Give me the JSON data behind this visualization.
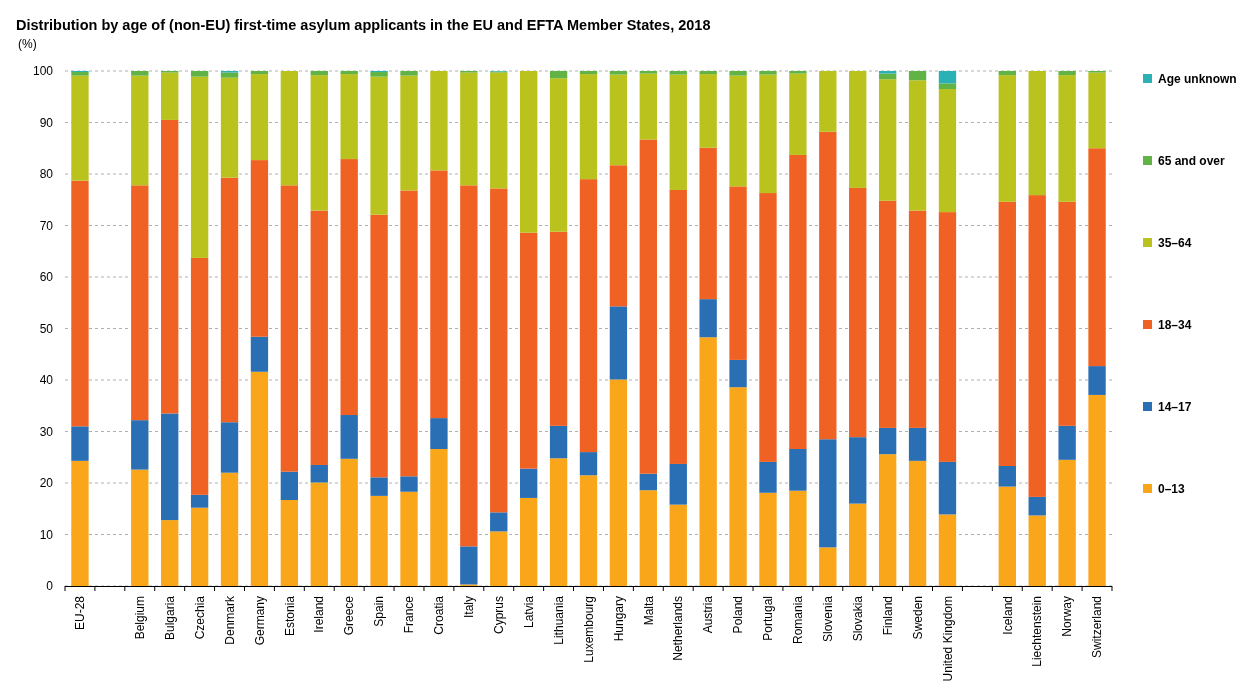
{
  "chart_data": {
    "type": "bar",
    "stacked": true,
    "title": "Distribution by age of (non-EU) first-time  asylum applicants in the EU and EFTA Member States, 2018",
    "ylabel": "(%)",
    "categories": [
      "EU-28",
      null,
      "Belgium",
      "Bulgaria",
      "Czechia",
      "Denmark",
      "Germany",
      "Estonia",
      "Ireland",
      "Greece",
      "Spain",
      "France",
      "Croatia",
      "Italy",
      "Cyprus",
      "Latvia",
      "Lithuania",
      "Luxembourg",
      "Hungary",
      "Malta",
      "Netherlands",
      "Austria",
      "Poland",
      "Portugal",
      "Romania",
      "Slovenia",
      "Slovakia",
      "Finland",
      "Sweden",
      "United Kingdom",
      null,
      "Iceland",
      "Liechtenstein",
      "Norway",
      "Switzerland"
    ],
    "series": [
      {
        "name": "0–13",
        "color": "#f9a61a",
        "values": [
          24.3,
          null,
          22.6,
          12.8,
          15.2,
          22.0,
          41.6,
          16.7,
          20.1,
          24.7,
          17.5,
          18.3,
          26.6,
          0.3,
          10.6,
          17.1,
          24.8,
          21.5,
          40.1,
          18.6,
          15.8,
          48.3,
          38.6,
          18.1,
          18.5,
          7.5,
          16.0,
          25.6,
          24.3,
          13.9,
          null,
          19.3,
          13.7,
          24.5,
          37.1
        ]
      },
      {
        "name": "14–17",
        "color": "#2a6eb4",
        "values": [
          6.7,
          null,
          9.6,
          20.7,
          2.5,
          9.8,
          6.8,
          5.5,
          3.4,
          8.5,
          3.6,
          3.0,
          6.0,
          7.4,
          3.7,
          5.7,
          6.3,
          4.5,
          14.2,
          3.2,
          7.9,
          7.4,
          5.3,
          6.0,
          8.1,
          21.0,
          12.9,
          5.1,
          6.4,
          10.2,
          null,
          4.0,
          3.6,
          6.6,
          5.6
        ]
      },
      {
        "name": "18–34",
        "color": "#ef6223",
        "values": [
          47.7,
          null,
          45.6,
          57.0,
          46.0,
          47.5,
          34.3,
          55.6,
          49.4,
          49.7,
          51.0,
          55.5,
          48.1,
          70.1,
          62.9,
          45.8,
          37.7,
          53.0,
          27.4,
          64.9,
          53.2,
          29.4,
          33.7,
          52.2,
          57.1,
          59.7,
          48.4,
          44.1,
          42.2,
          48.5,
          null,
          51.3,
          58.6,
          43.5,
          42.3
        ]
      },
      {
        "name": "35–64",
        "color": "#bac21e",
        "values": [
          20.4,
          null,
          21.3,
          9.2,
          35.2,
          19.4,
          16.7,
          22.2,
          26.3,
          16.5,
          26.8,
          22.3,
          19.3,
          21.9,
          22.5,
          31.4,
          29.8,
          20.4,
          17.6,
          12.8,
          22.4,
          14.3,
          21.5,
          23.0,
          15.8,
          11.8,
          22.7,
          23.6,
          25.3,
          23.9,
          null,
          24.6,
          24.1,
          24.6,
          14.7
        ]
      },
      {
        "name": "65 and over",
        "color": "#62b346",
        "values": [
          0.7,
          null,
          0.9,
          0.3,
          1.1,
          1.0,
          0.6,
          0,
          0.8,
          0.6,
          0.9,
          0.9,
          0,
          0.3,
          0.2,
          0,
          1.4,
          0.6,
          0.7,
          0.5,
          0.7,
          0.6,
          0.9,
          0.7,
          0.5,
          0,
          0,
          1.1,
          1.8,
          1.1,
          null,
          0.8,
          0,
          0.8,
          0.3
        ]
      },
      {
        "name": "Age unknown",
        "color": "#2ab0b5",
        "values": [
          0.2,
          null,
          0,
          0,
          0,
          0.3,
          0,
          0,
          0,
          0,
          0.2,
          0,
          0,
          0,
          0.1,
          0,
          0,
          0,
          0,
          0,
          0,
          0,
          0,
          0,
          0,
          0,
          0,
          0.5,
          0,
          2.4,
          null,
          0,
          0,
          0,
          0
        ]
      }
    ],
    "ylim": [
      0,
      100
    ],
    "yticks": [
      0,
      10,
      20,
      30,
      40,
      50,
      60,
      70,
      80,
      90,
      100
    ],
    "grid": "y",
    "legend": "right"
  }
}
